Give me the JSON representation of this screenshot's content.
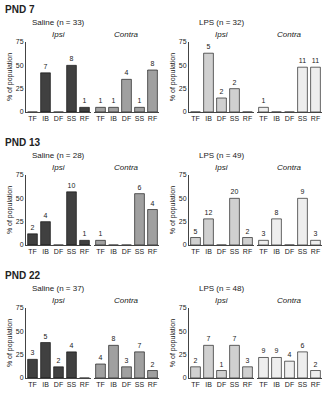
{
  "chart_data": [
    {
      "type": "bar",
      "title": "Saline (n = 33)",
      "subtitle": "Ipsi",
      "annotations": [
        {
          "text": "PND 7"
        }
      ],
      "ylabel": "% of population",
      "categories": [
        "TF",
        "IB",
        "DF",
        "SS",
        "RF"
      ],
      "values": [
        0,
        42,
        0,
        50,
        5
      ],
      "counts": [
        null,
        7,
        null,
        8,
        1
      ],
      "color": "#404040",
      "ylim": [
        0,
        75
      ],
      "yticks": [
        0,
        25,
        50,
        75
      ],
      "grid": false
    },
    {
      "type": "bar",
      "subtitle": "Contra",
      "categories": [
        "TF",
        "IB",
        "DF",
        "SS",
        "RF"
      ],
      "values": [
        5,
        5,
        35,
        5,
        45
      ],
      "counts": [
        1,
        1,
        4,
        1,
        8
      ],
      "color": "#a0a0a0",
      "ylim": [
        0,
        75
      ],
      "yticks": [
        0,
        25,
        50,
        75
      ],
      "grid": false,
      "tick_labels": "x"
    },
    {
      "type": "bar",
      "title": "LPS (n = 32)",
      "subtitle": "Ipsi",
      "ylabel": "% of population",
      "categories": [
        "TF",
        "IB",
        "DF",
        "SS",
        "RF"
      ],
      "values": [
        0,
        63,
        15,
        25,
        0
      ],
      "counts": [
        null,
        5,
        2,
        2,
        null
      ],
      "color": "#d0d0d0",
      "ylim": [
        0,
        75
      ],
      "yticks": [
        0,
        25,
        50,
        75
      ],
      "grid": false
    },
    {
      "type": "bar",
      "subtitle": "Contra",
      "categories": [
        "TF",
        "IB",
        "DF",
        "SS",
        "RF"
      ],
      "values": [
        5,
        0,
        0,
        48,
        48
      ],
      "counts": [
        1,
        null,
        null,
        11,
        11
      ],
      "color": "#eeeeee",
      "ylim": [
        0,
        75
      ],
      "yticks": [
        0,
        25,
        50,
        75
      ],
      "grid": false,
      "tick_labels": "x"
    },
    {
      "type": "bar",
      "title": "Saline (n = 28)",
      "subtitle": "Ipsi",
      "annotations": [
        {
          "text": "PND 13"
        }
      ],
      "ylabel": "% of population",
      "categories": [
        "TF",
        "IB",
        "DF",
        "SS",
        "RF"
      ],
      "values": [
        12,
        25,
        0,
        57,
        5
      ],
      "counts": [
        2,
        4,
        null,
        10,
        1
      ],
      "color": "#404040",
      "ylim": [
        0,
        75
      ],
      "yticks": [
        0,
        25,
        50,
        75
      ],
      "grid": false
    },
    {
      "type": "bar",
      "subtitle": "Contra",
      "categories": [
        "TF",
        "IB",
        "DF",
        "SS",
        "RF"
      ],
      "values": [
        5,
        0,
        0,
        55,
        38
      ],
      "counts": [
        1,
        null,
        null,
        6,
        4
      ],
      "color": "#a0a0a0",
      "ylim": [
        0,
        75
      ],
      "yticks": [
        0,
        25,
        50,
        75
      ],
      "grid": false,
      "tick_labels": "x"
    },
    {
      "type": "bar",
      "title": "LPS (n = 49)",
      "subtitle": "Ipsi",
      "ylabel": "% of population",
      "categories": [
        "TF",
        "IB",
        "DF",
        "SS",
        "RF"
      ],
      "values": [
        8,
        28,
        0,
        50,
        8
      ],
      "counts": [
        5,
        12,
        null,
        20,
        2
      ],
      "color": "#d0d0d0",
      "ylim": [
        0,
        75
      ],
      "yticks": [
        0,
        25,
        50,
        75
      ],
      "grid": false
    },
    {
      "type": "bar",
      "subtitle": "Contra",
      "categories": [
        "TF",
        "IB",
        "DF",
        "SS",
        "RF"
      ],
      "values": [
        5,
        28,
        0,
        50,
        5
      ],
      "counts": [
        3,
        8,
        null,
        9,
        3
      ],
      "color": "#eeeeee",
      "ylim": [
        0,
        75
      ],
      "yticks": [
        0,
        25,
        50,
        75
      ],
      "grid": false,
      "tick_labels": "x"
    },
    {
      "type": "bar",
      "title": "Saline (n = 37)",
      "subtitle": "Ipsi",
      "annotations": [
        {
          "text": "PND 22"
        }
      ],
      "ylabel": "% of population",
      "categories": [
        "TF",
        "IB",
        "DF",
        "SS",
        "RF"
      ],
      "values": [
        20,
        38,
        12,
        28,
        0
      ],
      "counts": [
        3,
        5,
        2,
        4,
        null
      ],
      "color": "#404040",
      "ylim": [
        0,
        75
      ],
      "yticks": [
        0,
        25,
        50,
        75
      ],
      "grid": false
    },
    {
      "type": "bar",
      "subtitle": "Contra",
      "categories": [
        "TF",
        "IB",
        "DF",
        "SS",
        "RF"
      ],
      "values": [
        15,
        35,
        12,
        28,
        8
      ],
      "counts": [
        4,
        8,
        3,
        7,
        2
      ],
      "color": "#a0a0a0",
      "ylim": [
        0,
        75
      ],
      "yticks": [
        0,
        25,
        50,
        75
      ],
      "grid": false,
      "tick_labels": "x"
    },
    {
      "type": "bar",
      "title": "LPS (n = 48)",
      "subtitle": "Ipsi",
      "ylabel": "% of population",
      "categories": [
        "TF",
        "IB",
        "DF",
        "SS",
        "RF"
      ],
      "values": [
        12,
        35,
        8,
        35,
        12
      ],
      "counts": [
        2,
        7,
        1,
        7,
        3
      ],
      "color": "#d0d0d0",
      "ylim": [
        0,
        75
      ],
      "yticks": [
        0,
        25,
        50,
        75
      ],
      "grid": false
    },
    {
      "type": "bar",
      "subtitle": "Contra",
      "categories": [
        "TF",
        "IB",
        "DF",
        "SS",
        "RF"
      ],
      "values": [
        22,
        22,
        18,
        28,
        8
      ],
      "counts": [
        9,
        9,
        4,
        6,
        2
      ],
      "color": "#eeeeee",
      "ylim": [
        0,
        75
      ],
      "yticks": [
        0,
        25,
        50,
        75
      ],
      "grid": false,
      "tick_labels": "x"
    }
  ]
}
